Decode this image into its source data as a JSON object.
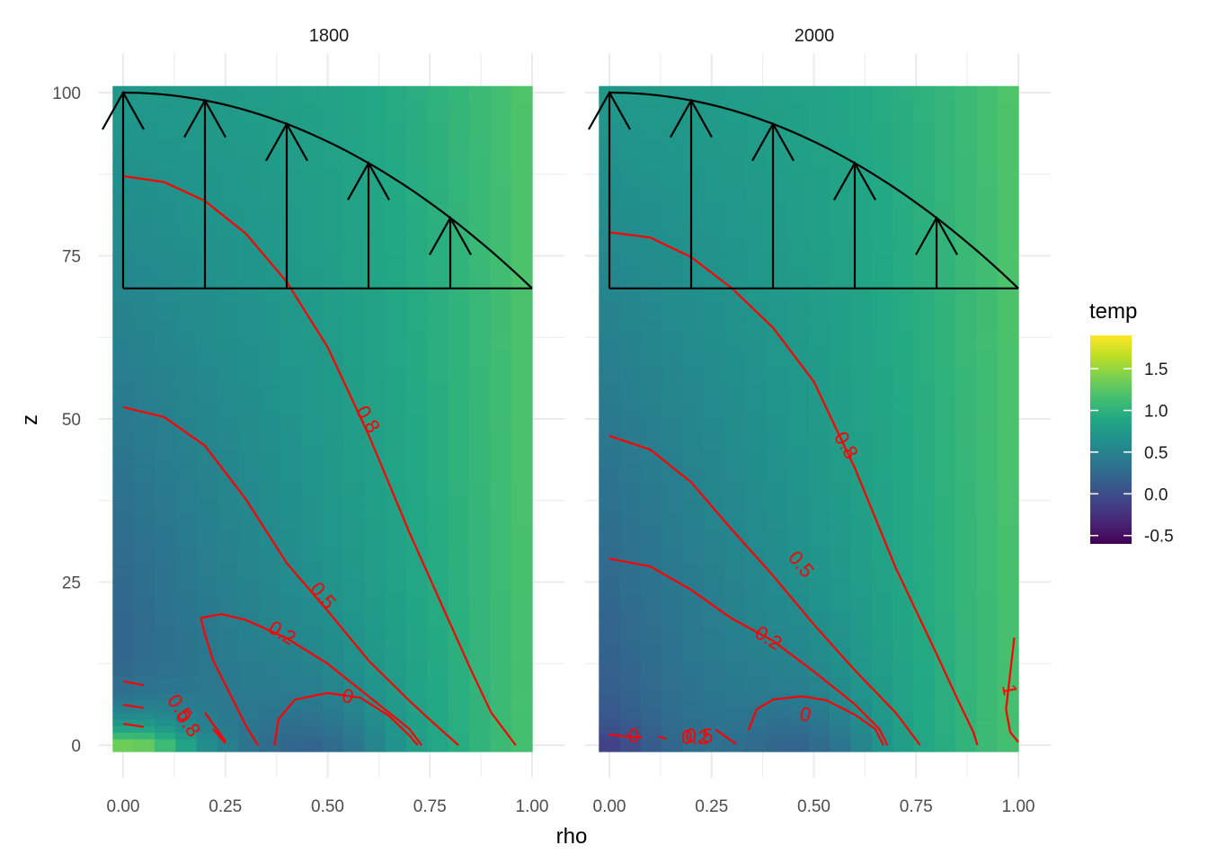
{
  "chart_data": {
    "type": "heatmap",
    "xlabel": "rho",
    "ylabel": "z",
    "xlim": [
      0,
      1
    ],
    "ylim": [
      0,
      100
    ],
    "x_ticks": [
      "0.00",
      "0.25",
      "0.50",
      "0.75",
      "1.00"
    ],
    "y_ticks": [
      "0",
      "25",
      "50",
      "75",
      "100"
    ],
    "legend": {
      "title": "temp",
      "range": [
        -0.6,
        1.9
      ],
      "ticks": [
        "-0.5",
        "0.0",
        "0.5",
        "1.0",
        "1.5"
      ],
      "palette": [
        "#440154",
        "#3b528b",
        "#21918c",
        "#5ec962",
        "#fde725"
      ],
      "placement": "right"
    },
    "contour_color": "#ff0000",
    "overlay_color": "#000000",
    "panels": [
      {
        "title": "1800",
        "contours": [
          {
            "level": "0.8",
            "points": [
              [
                0,
                87.2
              ],
              [
                0.1,
                86.3
              ],
              [
                0.2,
                83.4
              ],
              [
                0.3,
                78.4
              ],
              [
                0.4,
                71.0
              ],
              [
                0.5,
                61.0
              ],
              [
                0.6,
                47.6
              ],
              [
                0.7,
                32.6
              ],
              [
                0.8,
                18.6
              ],
              [
                0.85,
                11.6
              ],
              [
                0.9,
                5.0
              ],
              [
                0.96,
                0
              ]
            ],
            "label_at": [
              0.6,
              50
            ],
            "label_rot": 60
          },
          {
            "level": "0.5",
            "points": [
              [
                0,
                51.8
              ],
              [
                0.1,
                50.3
              ],
              [
                0.2,
                45.9
              ],
              [
                0.3,
                37.7
              ],
              [
                0.4,
                27.9
              ],
              [
                0.5,
                20.6
              ],
              [
                0.6,
                13.0
              ],
              [
                0.7,
                6.8
              ],
              [
                0.75,
                3.9
              ],
              [
                0.82,
                0
              ]
            ],
            "label_at": [
              0.49,
              23
            ],
            "label_rot": 50
          },
          {
            "level": "0.2",
            "points": [
              [
                0.19,
                19.5
              ],
              [
                0.24,
                20.1
              ],
              [
                0.3,
                19.2
              ],
              [
                0.4,
                16.4
              ],
              [
                0.5,
                12.5
              ],
              [
                0.6,
                7.5
              ],
              [
                0.7,
                2.5
              ],
              [
                0.73,
                0
              ]
            ],
            "label_at": [
              0.39,
              17.3
            ],
            "label_rot": 32
          },
          {
            "level": "0.2",
            "points": [
              [
                0.19,
                19.5
              ],
              [
                0.2,
                17.0
              ],
              [
                0.22,
                13.0
              ],
              [
                0.26,
                8.0
              ],
              [
                0.3,
                3.0
              ],
              [
                0.33,
                0
              ]
            ]
          },
          {
            "level": "0",
            "points": [
              [
                0.37,
                0
              ],
              [
                0.38,
                4
              ],
              [
                0.42,
                7.0
              ],
              [
                0.5,
                8.0
              ],
              [
                0.58,
                7.3
              ],
              [
                0.65,
                4.5
              ],
              [
                0.7,
                1.5
              ],
              [
                0.72,
                0
              ]
            ],
            "label_at": [
              0.55,
              7.6
            ],
            "label_rot": 15
          },
          {
            "level": "0.5",
            "points": [
              [
                0.0,
                9.8
              ],
              [
                0.05,
                9.2
              ]
            ],
            "label_at": [
              0.14,
              5.8
            ],
            "label_rot": 55
          },
          {
            "level": "0.8",
            "points": [
              [
                0.0,
                6.2
              ],
              [
                0.05,
                5.7
              ]
            ],
            "label_at": [
              0.16,
              3.4
            ],
            "label_rot": 55
          },
          {
            "level": "1",
            "points": [
              [
                0.0,
                3.3
              ],
              [
                0.05,
                2.8
              ]
            ]
          },
          {
            "level": "",
            "points": [
              [
                0.2,
                5.0
              ],
              [
                0.25,
                0.6
              ]
            ]
          },
          {
            "level": "",
            "points": [
              [
                0.22,
                2.5
              ],
              [
                0.25,
                0.3
              ]
            ]
          }
        ]
      },
      {
        "title": "2000",
        "contours": [
          {
            "level": "0.8",
            "points": [
              [
                0,
                78.6
              ],
              [
                0.1,
                77.8
              ],
              [
                0.2,
                74.8
              ],
              [
                0.3,
                70.0
              ],
              [
                0.4,
                64.0
              ],
              [
                0.5,
                55.7
              ],
              [
                0.6,
                42.5
              ],
              [
                0.7,
                27.2
              ],
              [
                0.8,
                14.0
              ],
              [
                0.85,
                7.2
              ],
              [
                0.89,
                2.0
              ],
              [
                0.9,
                0
              ]
            ],
            "label_at": [
              0.58,
              46
            ],
            "label_rot": 60
          },
          {
            "level": "0.5",
            "points": [
              [
                0,
                47.4
              ],
              [
                0.1,
                45.3
              ],
              [
                0.2,
                40.3
              ],
              [
                0.3,
                33.0
              ],
              [
                0.4,
                26.0
              ],
              [
                0.5,
                18.5
              ],
              [
                0.6,
                11.5
              ],
              [
                0.7,
                5.0
              ],
              [
                0.76,
                0
              ]
            ],
            "label_at": [
              0.47,
              27.8
            ],
            "label_rot": 50
          },
          {
            "level": "0.2",
            "points": [
              [
                0,
                28.6
              ],
              [
                0.1,
                27.4
              ],
              [
                0.2,
                23.8
              ],
              [
                0.3,
                19.4
              ],
              [
                0.4,
                16.0
              ],
              [
                0.5,
                11.3
              ],
              [
                0.6,
                6.3
              ],
              [
                0.66,
                2.5
              ],
              [
                0.68,
                0
              ]
            ],
            "label_at": [
              0.39,
              16.5
            ],
            "label_rot": 32
          },
          {
            "level": "0",
            "points": [
              [
                0.34,
                2.3
              ],
              [
                0.36,
                5.5
              ],
              [
                0.4,
                7.0
              ],
              [
                0.47,
                7.5
              ],
              [
                0.53,
                6.9
              ],
              [
                0.6,
                4.7
              ],
              [
                0.65,
                2.5
              ],
              [
                0.67,
                0
              ]
            ],
            "label_at": [
              0.48,
              4.8
            ],
            "label_rot": 15
          },
          {
            "level": "0",
            "points": [
              [
                0.0,
                1.6
              ],
              [
                0.03,
                1.4
              ],
              [
                0.08,
                1.2
              ]
            ],
            "label_at": [
              0.06,
              1.5
            ],
            "label_rot": 0
          },
          {
            "level": "0.5",
            "points": [
              [
                0.12,
                1.3
              ],
              [
                0.14,
                1.0
              ]
            ],
            "label_at": [
              0.22,
              1.5
            ],
            "label_rot": 0
          },
          {
            "level": "0.2",
            "points": [
              [
                0.26,
                2.4
              ],
              [
                0.31,
                0.2
              ]
            ],
            "label_at": [
              0.21,
              1.3
            ],
            "label_rot": 0
          },
          {
            "level": "1",
            "points": [
              [
                0.99,
                16.5
              ],
              [
                0.98,
                11.0
              ],
              [
                0.97,
                5.5
              ],
              [
                0.98,
                2.0
              ],
              [
                1.0,
                0.5
              ]
            ],
            "label_at": [
              0.98,
              8.5
            ],
            "label_rot": 80
          }
        ]
      }
    ]
  }
}
